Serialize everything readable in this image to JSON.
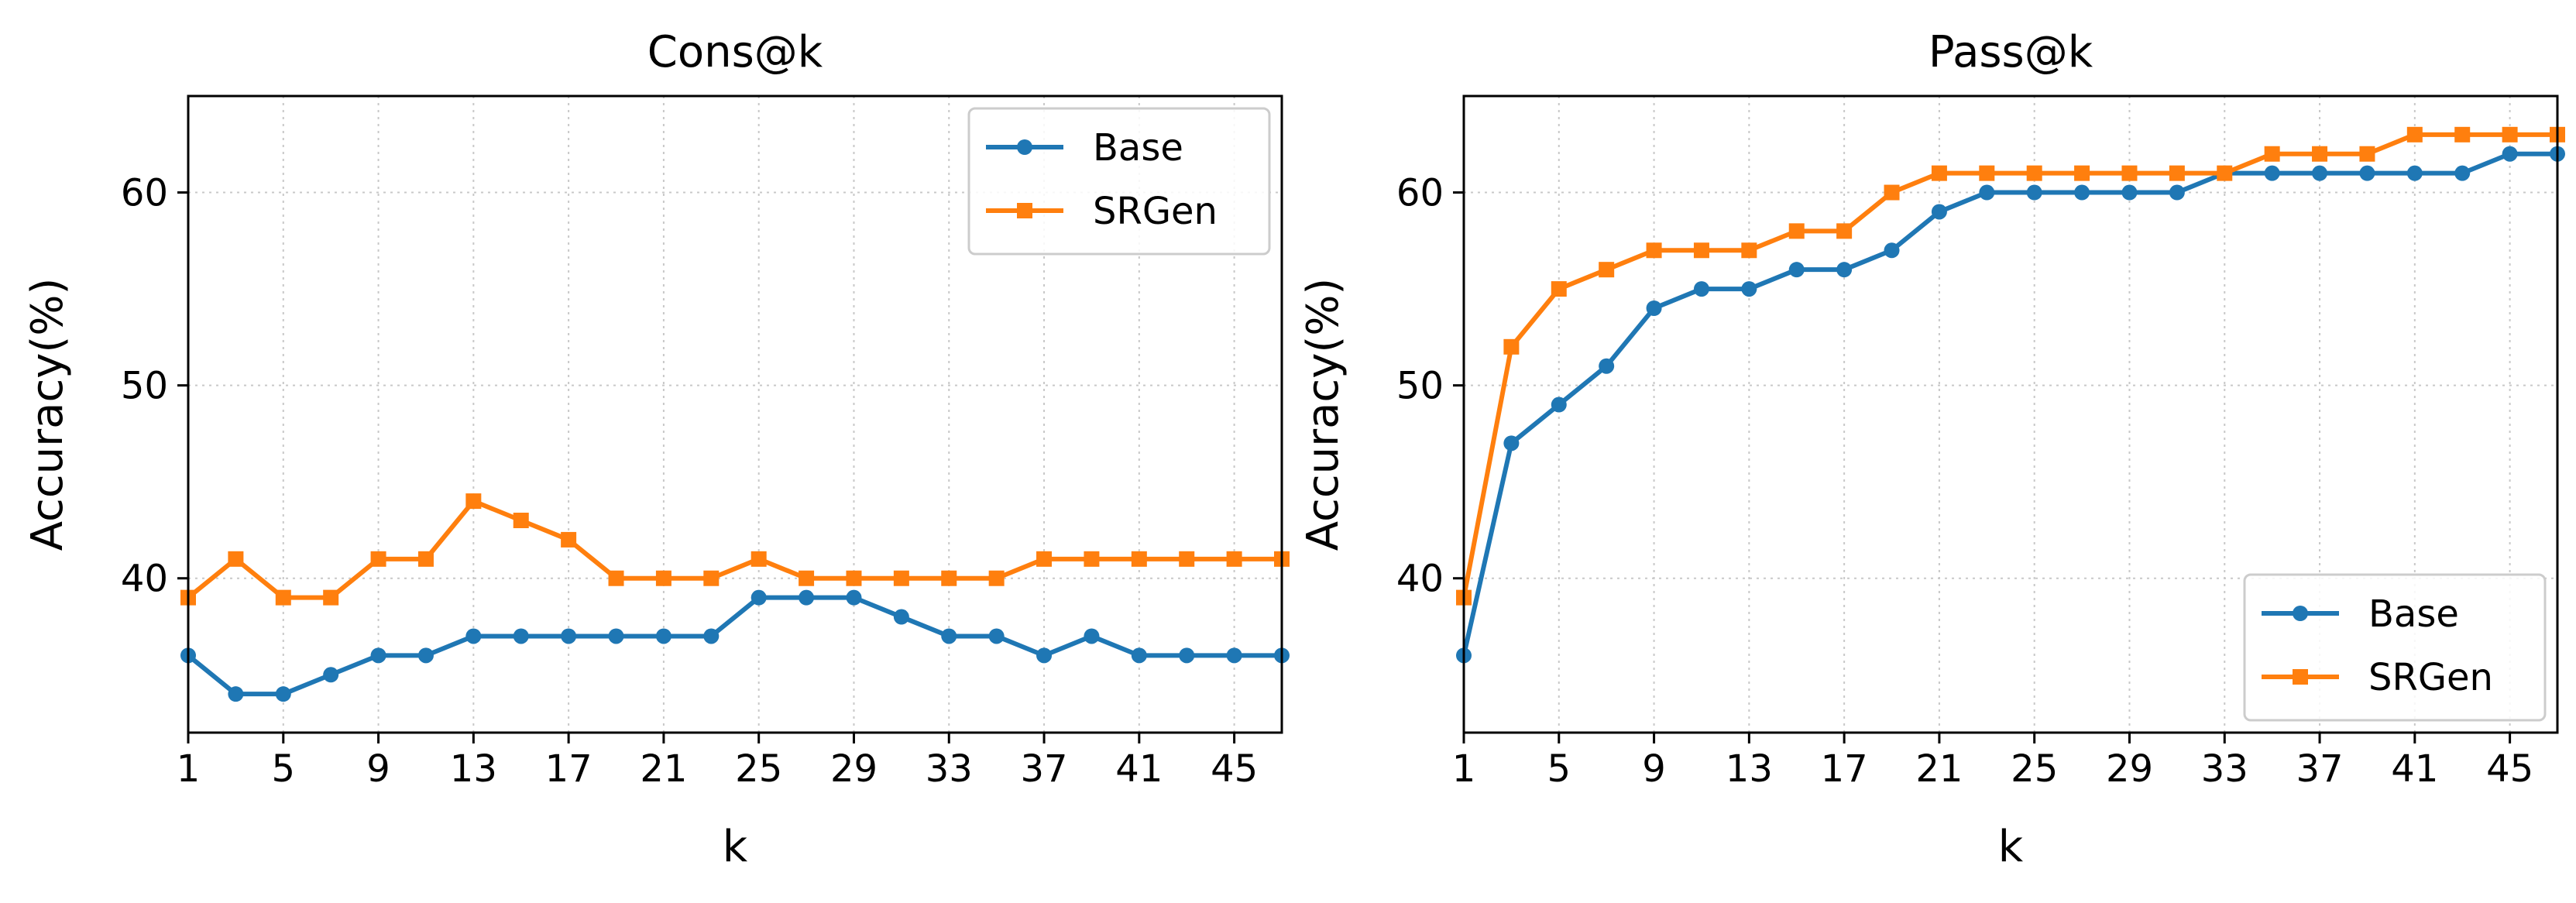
{
  "chart_data": [
    {
      "type": "line",
      "title": "Cons@k",
      "xlabel": "k",
      "ylabel": "Accuracy(%)",
      "xlim": [
        1,
        47
      ],
      "ylim": [
        32,
        65
      ],
      "xticks": [
        1,
        5,
        9,
        13,
        17,
        21,
        25,
        29,
        33,
        37,
        41,
        45
      ],
      "yticks": [
        40,
        50,
        60
      ],
      "grid": true,
      "legend_position": "upper right",
      "x": [
        1,
        3,
        5,
        7,
        9,
        11,
        13,
        15,
        17,
        19,
        21,
        23,
        25,
        27,
        29,
        31,
        33,
        35,
        37,
        39,
        41,
        43,
        45,
        47
      ],
      "series": [
        {
          "name": "Base",
          "color": "#1f77b4",
          "marker": "circle",
          "values": [
            36,
            34,
            34,
            35,
            36,
            36,
            37,
            37,
            37,
            37,
            37,
            37,
            39,
            39,
            39,
            38,
            37,
            37,
            36,
            37,
            36,
            36,
            36,
            36
          ]
        },
        {
          "name": "SRGen",
          "color": "#ff7f0e",
          "marker": "square",
          "values": [
            39,
            41,
            39,
            39,
            41,
            41,
            44,
            43,
            42,
            40,
            40,
            40,
            41,
            40,
            40,
            40,
            40,
            40,
            41,
            41,
            41,
            41,
            41,
            41
          ]
        }
      ]
    },
    {
      "type": "line",
      "title": "Pass@k",
      "xlabel": "k",
      "ylabel": "Accuracy(%)",
      "xlim": [
        1,
        47
      ],
      "ylim": [
        32,
        65
      ],
      "xticks": [
        1,
        5,
        9,
        13,
        17,
        21,
        25,
        29,
        33,
        37,
        41,
        45
      ],
      "yticks": [
        40,
        50,
        60
      ],
      "grid": true,
      "legend_position": "lower right",
      "x": [
        1,
        3,
        5,
        7,
        9,
        11,
        13,
        15,
        17,
        19,
        21,
        23,
        25,
        27,
        29,
        31,
        33,
        35,
        37,
        39,
        41,
        43,
        45,
        47
      ],
      "series": [
        {
          "name": "Base",
          "color": "#1f77b4",
          "marker": "circle",
          "values": [
            36,
            47,
            49,
            51,
            54,
            55,
            55,
            56,
            56,
            57,
            59,
            60,
            60,
            60,
            60,
            60,
            61,
            61,
            61,
            61,
            61,
            61,
            62,
            62
          ]
        },
        {
          "name": "SRGen",
          "color": "#ff7f0e",
          "marker": "square",
          "values": [
            39,
            52,
            55,
            56,
            57,
            57,
            57,
            58,
            58,
            60,
            61,
            61,
            61,
            61,
            61,
            61,
            61,
            62,
            62,
            62,
            63,
            63,
            63,
            63
          ]
        }
      ]
    }
  ]
}
